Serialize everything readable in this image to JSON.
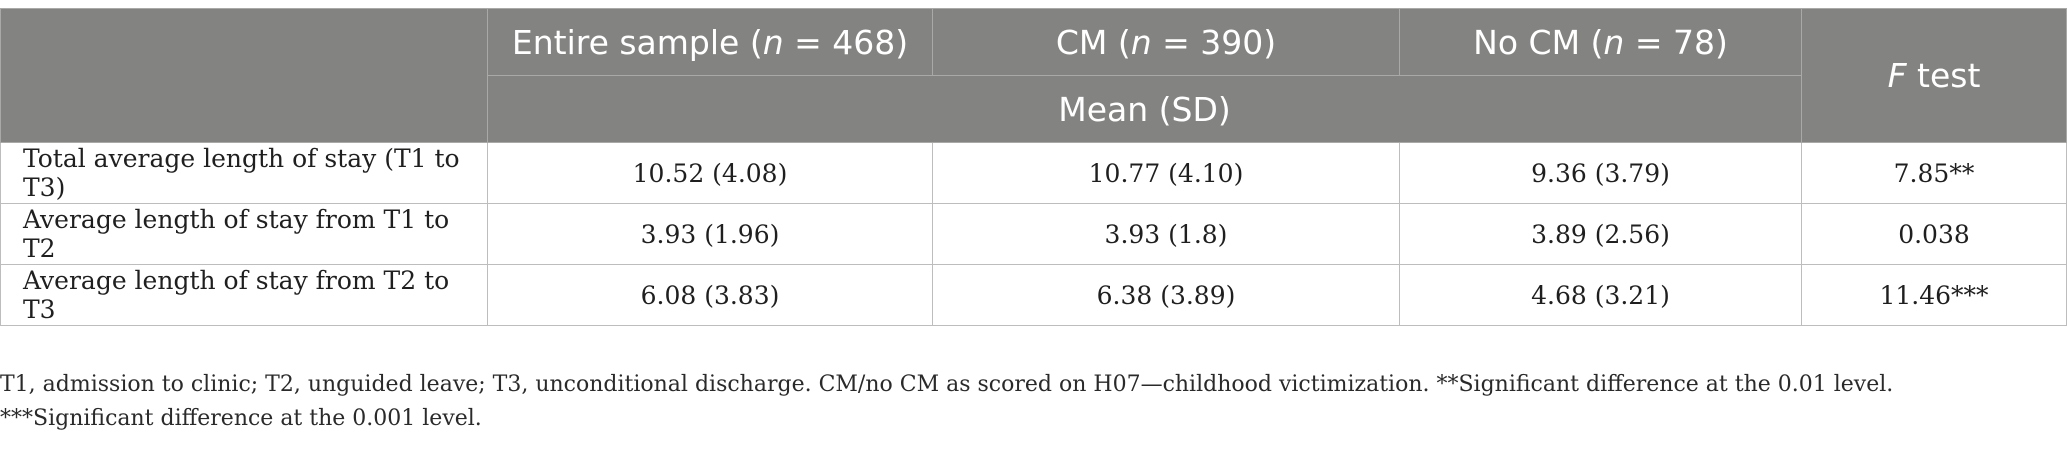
{
  "table": {
    "header": {
      "columns": [
        {
          "prefix": "Entire sample (",
          "italic": "n",
          "suffix": " = 468)"
        },
        {
          "prefix": "CM (",
          "italic": "n",
          "suffix": " = 390)"
        },
        {
          "prefix": "No CM (",
          "italic": "n",
          "suffix": " = 78)"
        },
        {
          "prefix": "",
          "italic": "F",
          "suffix": " test"
        }
      ],
      "subheader": "Mean (SD)"
    },
    "rows": [
      {
        "label": "Total average length of stay (T1 to T3)",
        "entire": "10.52 (4.08)",
        "cm": "10.77 (4.10)",
        "no_cm": "9.36 (3.79)",
        "f_test": "7.85**"
      },
      {
        "label": "Average length of stay from T1 to T2",
        "entire": "3.93 (1.96)",
        "cm": "3.93 (1.8)",
        "no_cm": "3.89 (2.56)",
        "f_test": "0.038"
      },
      {
        "label": "Average length of stay from T2 to T3",
        "entire": "6.08 (3.83)",
        "cm": "6.38 (3.89)",
        "no_cm": "4.68 (3.21)",
        "f_test": "11.46***"
      }
    ]
  },
  "footnote": "T1, admission to clinic; T2, unguided leave; T3, unconditional discharge. CM/no CM as scored on H07—childhood victimization. **Significant difference at the 0.01 level. ***Significant difference at the 0.001 level."
}
